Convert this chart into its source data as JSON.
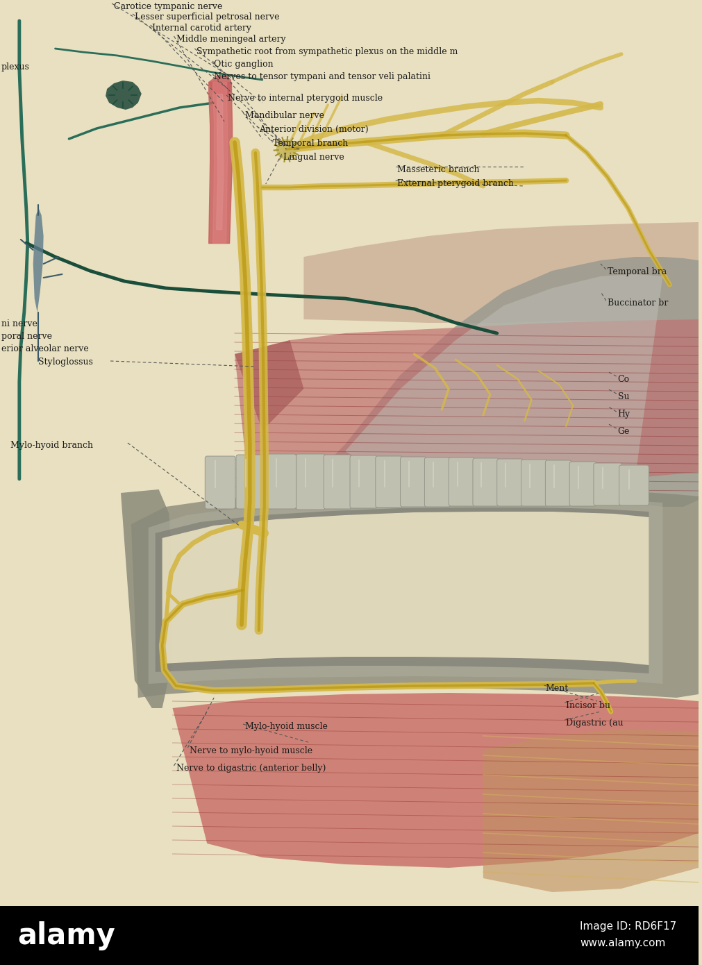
{
  "background_color": "#e8e0c0",
  "watermark_bg": "#000000",
  "nerve_yellow": "#d4b84a",
  "nerve_yellow_light": "#e8d070",
  "nerve_dark_yellow": "#b8960a",
  "artery_red": "#c86060",
  "artery_light": "#e08080",
  "nerve_teal": "#2a6e5a",
  "nerve_teal_dark": "#1a4e3a",
  "nerve_blue_gray": "#5a7a8a",
  "nerve_blue_dark": "#3a5a6a",
  "muscle_red": "#c05050",
  "muscle_pink": "#d09090",
  "muscle_dark": "#8a3030",
  "bone_gray": "#8a8a7a",
  "bone_light": "#b0b0a0",
  "bone_dark": "#606055",
  "tooth_gray": "#c0c0b0",
  "tooth_dark": "#909085",
  "text_color": "#1a1a1a",
  "dashed_color": "#444444",
  "font_size_main": 10,
  "font_size_small": 9,
  "alamy_text": "alamy",
  "image_id": "Image ID: RD6F17",
  "website": "www.alamy.com",
  "top_labels": [
    [
      165,
      3,
      "Carotice tympanic nerve"
    ],
    [
      195,
      18,
      "Lesser superficial petrosal nerve"
    ],
    [
      220,
      34,
      "Internal carotid artery"
    ],
    [
      255,
      50,
      "Middle meningeal artery"
    ],
    [
      285,
      68,
      "Sympathetic root from sympathetic plexus on the middle m"
    ],
    [
      310,
      86,
      "Otic ganglion"
    ],
    [
      310,
      104,
      "Nerves to tensor tympani and tensor veli palatini"
    ],
    [
      330,
      135,
      "Nerve to internal pterygoid muscle"
    ],
    [
      355,
      160,
      "Mandibular nerve"
    ],
    [
      375,
      180,
      "Anterior division (motor)"
    ],
    [
      395,
      200,
      "Temporal branch"
    ],
    [
      410,
      220,
      "Lingual nerve"
    ]
  ],
  "left_labels": [
    [
      2,
      90,
      "plexus"
    ],
    [
      2,
      460,
      "ni nerve"
    ],
    [
      2,
      478,
      "poral nerve"
    ],
    [
      2,
      496,
      "erior alveolar nerve"
    ]
  ],
  "mid_left_labels": [
    [
      55,
      520,
      "Styloglossus"
    ],
    [
      15,
      640,
      "Mylo-hyoid branch"
    ]
  ],
  "right_labels": [
    [
      880,
      385,
      "Temporal bra"
    ],
    [
      880,
      430,
      "Buccinator br"
    ],
    [
      895,
      540,
      "Co"
    ],
    [
      895,
      565,
      "Su"
    ],
    [
      895,
      590,
      "Hy"
    ],
    [
      895,
      615,
      "Ge"
    ]
  ],
  "right_upper_labels": [
    [
      575,
      238,
      "Masseteric branch"
    ],
    [
      575,
      258,
      "External pterygoid branch"
    ]
  ],
  "bottom_labels": [
    [
      355,
      1040,
      "Mylo-hyoid muscle"
    ],
    [
      275,
      1075,
      "Nerve to mylo-hyoid muscle"
    ],
    [
      255,
      1100,
      "Nerve to digastric (anterior belly)"
    ]
  ],
  "bottom_right_labels": [
    [
      790,
      985,
      "Ment"
    ],
    [
      820,
      1010,
      "Incisor bu"
    ],
    [
      820,
      1035,
      "Digastric (au"
    ]
  ]
}
